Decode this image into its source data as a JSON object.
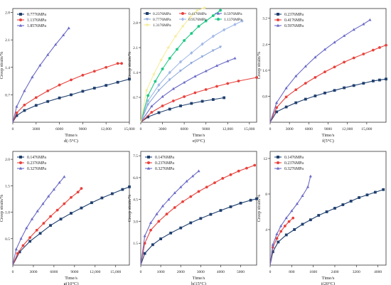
{
  "figure": {
    "ylabel": "Creep strain/%",
    "xlabel": "Time/s"
  },
  "chart_data": [
    {
      "type": "line",
      "caption": "d(-5°C)",
      "xlabel": "Time/s",
      "ylabel": "Creep strain/%",
      "xlim": [
        0,
        15000
      ],
      "ylim": [
        0,
        2.9
      ],
      "xticks": [
        0,
        3000,
        6000,
        9000,
        12000,
        15000
      ],
      "xtick_labels": [
        "0",
        "3000",
        "6000",
        "9000",
        "12,000",
        "15,000"
      ],
      "yticks": [
        0.7,
        1.4,
        2.1,
        2.8
      ],
      "ytick_labels": [
        "0.7",
        "1.4",
        "2.1",
        "2.8"
      ],
      "legend_position": "top-left",
      "series": [
        {
          "name": "0.7776MPa",
          "color": "#1f3f6e",
          "marker": "square",
          "x": [
            0,
            500,
            1500,
            3000,
            4500,
            6000,
            7500,
            9000,
            10500,
            12000,
            13500,
            15000
          ],
          "y": [
            0,
            0.17,
            0.3,
            0.43,
            0.53,
            0.62,
            0.7,
            0.79,
            0.87,
            0.94,
            1.02,
            1.1
          ]
        },
        {
          "name": "1.1376MPa",
          "color": "#e8413c",
          "marker": "circle",
          "x": [
            0,
            500,
            1500,
            3000,
            4500,
            6000,
            7500,
            9000,
            10500,
            12000,
            13500,
            14000
          ],
          "y": [
            0,
            0.24,
            0.44,
            0.63,
            0.8,
            0.95,
            1.08,
            1.2,
            1.3,
            1.4,
            1.5,
            1.5
          ]
        },
        {
          "name": "1.8576MPa",
          "color": "#6a6ac8",
          "marker": "triangle",
          "x": [
            0,
            500,
            1500,
            2500,
            3500,
            4500,
            5500,
            6500,
            7200
          ],
          "y": [
            0,
            0.4,
            0.8,
            1.15,
            1.45,
            1.72,
            1.98,
            2.22,
            2.4
          ]
        }
      ]
    },
    {
      "type": "line",
      "caption": "e(0°C)",
      "xlabel": "Time/s",
      "ylabel": "Creep strain/%",
      "xlim": [
        0,
        16000
      ],
      "ylim": [
        0,
        3.2
      ],
      "xticks": [
        0,
        3000,
        6000,
        9000,
        12000,
        15000
      ],
      "xtick_labels": [
        "0",
        "3000",
        "6000",
        "9000",
        "12,000",
        "15,000"
      ],
      "yticks": [
        0.7,
        1.4,
        2.1,
        2.8
      ],
      "ytick_labels": [
        "0.7",
        "1.4",
        "2.1",
        "2.8"
      ],
      "legend_position": "top-left",
      "series": [
        {
          "name": "0.2376MPa",
          "color": "#1f3f6e",
          "marker": "square",
          "x": [
            0,
            1000,
            2500,
            4000,
            5500,
            7000,
            8500,
            10000,
            11500
          ],
          "y": [
            0,
            0.15,
            0.27,
            0.37,
            0.46,
            0.53,
            0.59,
            0.64,
            0.69
          ]
        },
        {
          "name": "0.4176MPa",
          "color": "#e8413c",
          "marker": "circle",
          "x": [
            0,
            1500,
            3000,
            4500,
            6000,
            7500,
            9000,
            10500,
            12000,
            13500,
            16000
          ],
          "y": [
            0,
            0.28,
            0.46,
            0.6,
            0.72,
            0.83,
            0.92,
            1.01,
            1.09,
            1.16,
            1.26
          ]
        },
        {
          "name": "0.5976MPa",
          "color": "#6a6ac8",
          "marker": "triangle",
          "x": [
            0,
            1500,
            3000,
            4500,
            6000,
            7500,
            9000,
            10500,
            12000,
            13000
          ],
          "y": [
            0,
            0.45,
            0.72,
            0.94,
            1.12,
            1.29,
            1.44,
            1.59,
            1.72,
            1.8
          ]
        },
        {
          "name": "0.7776MPa",
          "color": "#8faadc",
          "marker": "triangle-down",
          "x": [
            0,
            1000,
            2500,
            4000,
            5500,
            7000,
            8500,
            10000,
            11000
          ],
          "y": [
            0,
            0.5,
            0.9,
            1.2,
            1.45,
            1.67,
            1.85,
            2.02,
            2.12
          ]
        },
        {
          "name": "0.9576MPa",
          "color": "#a0b8e8",
          "marker": "diamond",
          "x": [
            0,
            1000,
            2500,
            4000,
            5500,
            7000,
            8500,
            10000,
            11500,
            13000,
            14000
          ],
          "y": [
            0,
            0.6,
            1.05,
            1.4,
            1.7,
            1.95,
            2.2,
            2.42,
            2.6,
            2.75,
            2.85
          ]
        },
        {
          "name": "1.1376MPa",
          "color": "#20c887",
          "marker": "pentagon",
          "x": [
            0,
            1000,
            2000,
            3000,
            4000,
            5000,
            6000,
            7000,
            8000,
            9000,
            10000,
            11000
          ],
          "y": [
            0,
            0.75,
            1.15,
            1.5,
            1.8,
            2.05,
            2.3,
            2.5,
            2.7,
            2.85,
            3.0,
            3.15
          ]
        },
        {
          "name": "1.3176MPa",
          "color": "#f6ec9a",
          "marker": "star",
          "x": [
            0,
            800,
            1800,
            2800,
            3800,
            4800,
            5800,
            6800,
            7800,
            8800
          ],
          "y": [
            0,
            0.9,
            1.35,
            1.75,
            2.1,
            2.42,
            2.7,
            2.95,
            3.15,
            3.22
          ]
        }
      ]
    },
    {
      "type": "line",
      "caption": "f(5°C)",
      "xlabel": "Time/s",
      "ylabel": "Creep strain/%",
      "xlim": [
        0,
        18000
      ],
      "ylim": [
        0,
        3.5
      ],
      "xticks": [
        0,
        3000,
        6000,
        9000,
        12000,
        15000
      ],
      "xtick_labels": [
        "0",
        "3000",
        "6000",
        "9000",
        "12,000",
        "15,000"
      ],
      "yticks": [
        0.8,
        1.6,
        2.4,
        3.2
      ],
      "ytick_labels": [
        "0.8",
        "1.6",
        "2.4",
        "3.2"
      ],
      "legend_position": "top-left",
      "series": [
        {
          "name": "0.2376MPa",
          "color": "#1f3f6e",
          "marker": "square",
          "x": [
            0,
            1000,
            2500,
            4000,
            5500,
            7000,
            8500,
            10000,
            11500,
            13000,
            14500,
            16000,
            17000,
            18000
          ],
          "y": [
            0,
            0.32,
            0.47,
            0.6,
            0.71,
            0.81,
            0.9,
            0.98,
            1.06,
            1.13,
            1.2,
            1.27,
            1.3,
            1.33
          ]
        },
        {
          "name": "0.4176MPa",
          "color": "#e8413c",
          "marker": "circle",
          "x": [
            0,
            1000,
            2500,
            4000,
            5500,
            7000,
            8500,
            10000,
            11500,
            13000,
            14500,
            16000,
            17000,
            18000
          ],
          "y": [
            0,
            0.45,
            0.78,
            1.0,
            1.2,
            1.38,
            1.55,
            1.7,
            1.85,
            1.98,
            2.1,
            2.22,
            2.3,
            2.37
          ]
        },
        {
          "name": "0.5976MPa",
          "color": "#6a6ac8",
          "marker": "triangle",
          "x": [
            0,
            1000,
            2500,
            4000,
            5500,
            7000,
            8500,
            10000,
            11500,
            13000,
            14500,
            15500
          ],
          "y": [
            0,
            0.6,
            1.05,
            1.42,
            1.72,
            2.0,
            2.24,
            2.46,
            2.66,
            2.85,
            3.02,
            3.15
          ]
        }
      ]
    },
    {
      "type": "line",
      "caption": "g(10°C)",
      "xlabel": "Time/s",
      "ylabel": "Creep strain/%",
      "xlim": [
        0,
        17000
      ],
      "ylim": [
        0,
        2.15
      ],
      "xticks": [
        0,
        3000,
        6000,
        9000,
        12000,
        15000
      ],
      "xtick_labels": [
        "0",
        "3000",
        "6000",
        "9000",
        "12,000",
        "15,000"
      ],
      "yticks": [
        0.5,
        1.0,
        1.5,
        2.0
      ],
      "ytick_labels": [
        "0.5",
        "1.0",
        "1.5",
        "2.0"
      ],
      "legend_position": "top-left",
      "series": [
        {
          "name": "0.1476MPa",
          "color": "#1f3f6e",
          "marker": "square",
          "x": [
            0,
            1000,
            2500,
            4000,
            5500,
            7000,
            8500,
            10000,
            11500,
            13000,
            14500,
            16000,
            17000
          ],
          "y": [
            0,
            0.25,
            0.45,
            0.6,
            0.75,
            0.87,
            0.98,
            1.08,
            1.18,
            1.27,
            1.35,
            1.43,
            1.48
          ]
        },
        {
          "name": "0.2376MPa",
          "color": "#e8413c",
          "marker": "circle",
          "x": [
            0,
            700,
            1500,
            2500,
            3500,
            4500,
            5500,
            6500,
            7500,
            8500,
            9500,
            10000
          ],
          "y": [
            0,
            0.22,
            0.37,
            0.52,
            0.66,
            0.79,
            0.92,
            1.04,
            1.16,
            1.28,
            1.38,
            1.45
          ]
        },
        {
          "name": "0.3276MPa",
          "color": "#6a6ac8",
          "marker": "triangle",
          "x": [
            0,
            500,
            1200,
            2000,
            2800,
            3600,
            4400,
            5200,
            6000,
            6800,
            7500
          ],
          "y": [
            0,
            0.3,
            0.5,
            0.7,
            0.87,
            1.02,
            1.16,
            1.3,
            1.43,
            1.56,
            1.67
          ]
        }
      ]
    },
    {
      "type": "line",
      "caption": "h(15°C)",
      "xlabel": "Time/s",
      "ylabel": "Creep strain/%",
      "xlim": [
        0,
        5800
      ],
      "ylim": [
        0,
        7.8
      ],
      "xticks": [
        0,
        1000,
        2000,
        3000,
        4000,
        5000
      ],
      "xtick_labels": [
        "0",
        "1000",
        "2000",
        "3000",
        "4000",
        "5000"
      ],
      "yticks": [
        1.5,
        3.0,
        4.5,
        6.0,
        7.5
      ],
      "ytick_labels": [
        "1.5",
        "3.0",
        "4.5",
        "6.0",
        "7.5"
      ],
      "legend_position": "top-left",
      "series": [
        {
          "name": "0.1476MPa",
          "color": "#1f3f6e",
          "marker": "square",
          "x": [
            0,
            200,
            600,
            1000,
            1500,
            2000,
            2500,
            3000,
            3500,
            4000,
            4500,
            5000,
            5500,
            5800
          ],
          "y": [
            0,
            0.8,
            1.4,
            1.8,
            2.2,
            2.55,
            2.9,
            3.2,
            3.48,
            3.75,
            4.0,
            4.25,
            4.45,
            4.55
          ]
        },
        {
          "name": "0.2376MPa",
          "color": "#e8413c",
          "marker": "circle",
          "x": [
            0,
            200,
            500,
            900,
            1300,
            1700,
            2100,
            2500,
            2900,
            3300,
            3700,
            4100,
            4500,
            4900,
            5300,
            5700
          ],
          "y": [
            0,
            1.5,
            2.4,
            3.0,
            3.5,
            3.95,
            4.35,
            4.7,
            5.05,
            5.35,
            5.65,
            5.95,
            6.2,
            6.45,
            6.65,
            6.85
          ]
        },
        {
          "name": "0.3276MPa",
          "color": "#6a6ac8",
          "marker": "triangle",
          "x": [
            0,
            200,
            500,
            800,
            1100,
            1400,
            1700,
            2000,
            2300,
            2600,
            2900
          ],
          "y": [
            0,
            2.0,
            2.9,
            3.5,
            4.05,
            4.5,
            4.95,
            5.35,
            5.75,
            6.1,
            6.45
          ]
        }
      ]
    },
    {
      "type": "line",
      "caption": "i(20°C)",
      "xlabel": "Time/s",
      "ylabel": "Creep strain/%",
      "xlim": [
        0,
        4300
      ],
      "ylim": [
        0,
        12.8
      ],
      "xticks": [
        0,
        800,
        1600,
        2400,
        3200,
        4000
      ],
      "xtick_labels": [
        "0",
        "800",
        "1600",
        "2400",
        "3200",
        "4000"
      ],
      "yticks": [
        4,
        8,
        12
      ],
      "ytick_labels": [
        "4",
        "8",
        "12"
      ],
      "legend_position": "top-left",
      "series": [
        {
          "name": "0.1476MPa",
          "color": "#1f3f6e",
          "marker": "square",
          "x": [
            0,
            100,
            300,
            600,
            900,
            1200,
            1500,
            1800,
            2100,
            2400,
            2700,
            3000,
            3300,
            3600,
            3900,
            4200
          ],
          "y": [
            0,
            1.5,
            2.6,
            3.4,
            4.0,
            4.6,
            5.1,
            5.6,
            6.0,
            6.4,
            6.8,
            7.2,
            7.6,
            7.9,
            8.2,
            8.5
          ]
        },
        {
          "name": "0.2376MPa",
          "color": "#e8413c",
          "marker": "circle",
          "x": [
            0,
            100,
            250,
            400,
            550,
            700,
            850
          ],
          "y": [
            0,
            2.0,
            3.0,
            3.8,
            4.4,
            4.9,
            5.3
          ]
        },
        {
          "name": "0.3276MPa",
          "color": "#6a6ac8",
          "marker": "triangle",
          "x": [
            0,
            100,
            250,
            400,
            600,
            800,
            1000,
            1200,
            1400,
            1500
          ],
          "y": [
            0,
            2.3,
            3.5,
            4.4,
            5.3,
            6.1,
            6.9,
            7.8,
            8.8,
            10.0
          ]
        }
      ]
    }
  ]
}
